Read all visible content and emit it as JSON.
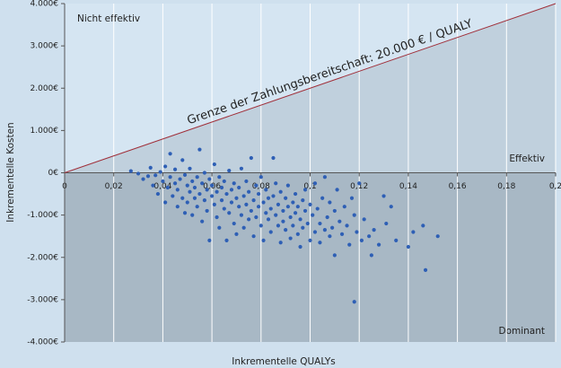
{
  "chart_data": {
    "type": "scatter",
    "x_label": "Inkrementelle QUALYs",
    "y_label": "Inkrementelle Kosten",
    "threshold_label": "Grenze der Zahlungsbereitschaft: 20.000 € / QUALY",
    "threshold_per_qualy": 20000,
    "region_labels": [
      "Nicht effektiv",
      "Effektiv",
      "Dominant"
    ],
    "color": "#2e5fb5",
    "threshold_color": "#a0303a",
    "xlim": [
      0,
      0.2
    ],
    "ylim": [
      -4000,
      4000
    ],
    "xticks": [
      0,
      {
        "value": 0.02,
        "label": "0,02"
      },
      {
        "value": 0.04,
        "label": "0,04"
      },
      {
        "value": 0.06,
        "label": "0,06"
      },
      {
        "value": 0.08,
        "label": "0,08"
      },
      {
        "value": 0.1,
        "label": "0,1"
      },
      {
        "value": 0.12,
        "label": "0,12"
      },
      {
        "value": 0.14,
        "label": "0,14"
      },
      {
        "value": 0.16,
        "label": "0,16"
      },
      {
        "value": 0.18,
        "label": "0,18"
      },
      {
        "value": 0.2,
        "label": "0,2"
      }
    ],
    "yticks": [
      {
        "value": 4000,
        "label": "4.000€"
      },
      {
        "value": 3000,
        "label": "3.000€"
      },
      {
        "value": 2000,
        "label": "2.000€"
      },
      {
        "value": 1000,
        "label": "1.000€"
      },
      {
        "value": 0,
        "label": "0€"
      },
      {
        "value": -1000,
        "label": "-1.000€"
      },
      {
        "value": -2000,
        "label": "-2.000€"
      },
      {
        "value": -3000,
        "label": "-3.000€"
      },
      {
        "value": -4000,
        "label": "-4.000€"
      }
    ],
    "x": [
      0.027,
      0.03,
      0.032,
      0.034,
      0.035,
      0.036,
      0.037,
      0.038,
      0.039,
      0.04,
      0.041,
      0.041,
      0.042,
      0.043,
      0.043,
      0.044,
      0.045,
      0.045,
      0.046,
      0.046,
      0.047,
      0.048,
      0.048,
      0.049,
      0.049,
      0.05,
      0.05,
      0.051,
      0.051,
      0.052,
      0.052,
      0.053,
      0.053,
      0.054,
      0.054,
      0.055,
      0.055,
      0.056,
      0.056,
      0.057,
      0.057,
      0.058,
      0.058,
      0.059,
      0.059,
      0.06,
      0.06,
      0.061,
      0.061,
      0.062,
      0.062,
      0.063,
      0.063,
      0.064,
      0.064,
      0.065,
      0.065,
      0.066,
      0.066,
      0.067,
      0.067,
      0.068,
      0.068,
      0.069,
      0.069,
      0.07,
      0.07,
      0.071,
      0.071,
      0.072,
      0.072,
      0.073,
      0.073,
      0.074,
      0.074,
      0.075,
      0.075,
      0.076,
      0.076,
      0.077,
      0.077,
      0.078,
      0.078,
      0.079,
      0.079,
      0.08,
      0.08,
      0.081,
      0.081,
      0.082,
      0.082,
      0.083,
      0.083,
      0.084,
      0.084,
      0.085,
      0.085,
      0.086,
      0.086,
      0.087,
      0.087,
      0.088,
      0.088,
      0.089,
      0.089,
      0.09,
      0.09,
      0.091,
      0.091,
      0.092,
      0.092,
      0.093,
      0.093,
      0.094,
      0.094,
      0.095,
      0.095,
      0.096,
      0.096,
      0.097,
      0.097,
      0.098,
      0.098,
      0.099,
      0.1,
      0.1,
      0.101,
      0.102,
      0.102,
      0.103,
      0.104,
      0.104,
      0.105,
      0.106,
      0.106,
      0.107,
      0.108,
      0.108,
      0.109,
      0.11,
      0.11,
      0.111,
      0.112,
      0.113,
      0.114,
      0.115,
      0.116,
      0.117,
      0.118,
      0.118,
      0.119,
      0.12,
      0.121,
      0.122,
      0.124,
      0.125,
      0.126,
      0.128,
      0.13,
      0.131,
      0.133,
      0.135,
      0.14,
      0.142,
      0.146,
      0.147,
      0.152
    ],
    "y": [
      40,
      -20,
      -150,
      -80,
      120,
      -300,
      -60,
      -500,
      20,
      -200,
      -700,
      150,
      -350,
      450,
      -100,
      -550,
      -250,
      80,
      -800,
      -400,
      -150,
      300,
      -600,
      -950,
      -50,
      -300,
      -700,
      100,
      -450,
      -200,
      -1000,
      -600,
      -350,
      -100,
      -800,
      550,
      -500,
      -250,
      -1150,
      -650,
      0,
      -400,
      -900,
      -150,
      -1600,
      -550,
      -300,
      200,
      -750,
      -1050,
      -450,
      -100,
      -1300,
      -650,
      -350,
      -850,
      -200,
      -1600,
      -500,
      -950,
      50,
      -700,
      -400,
      -1200,
      -250,
      -600,
      -1450,
      -800,
      -350,
      -1000,
      100,
      -550,
      -1300,
      -750,
      -200,
      -1100,
      -450,
      -900,
      350,
      -650,
      -1500,
      -300,
      -1050,
      -800,
      -500,
      -1250,
      -100,
      -700,
      -1600,
      -950,
      -400,
      -1100,
      -600,
      -850,
      -1400,
      350,
      -550,
      -1000,
      -250,
      -1250,
      -750,
      -1650,
      -450,
      -900,
      -1150,
      -600,
      -1350,
      -800,
      -300,
      -1050,
      -1550,
      -700,
      -1250,
      -950,
      -500,
      -1450,
      -800,
      -1100,
      -1750,
      -650,
      -1300,
      -900,
      -400,
      -1200,
      -1600,
      -750,
      -1000,
      -1400,
      -250,
      -850,
      -1200,
      -1650,
      -600,
      -1350,
      -100,
      -1050,
      -1500,
      -700,
      -1300,
      -1950,
      -900,
      -400,
      -1150,
      -1450,
      -800,
      -1250,
      -1700,
      -600,
      -3050,
      -1000,
      -1400,
      -250,
      -1600,
      -1100,
      -1500,
      -1950,
      -1350,
      -1700,
      -550,
      -1200,
      -800,
      -1600,
      -1750,
      -1400,
      -1250,
      -2300,
      -1500
    ]
  }
}
